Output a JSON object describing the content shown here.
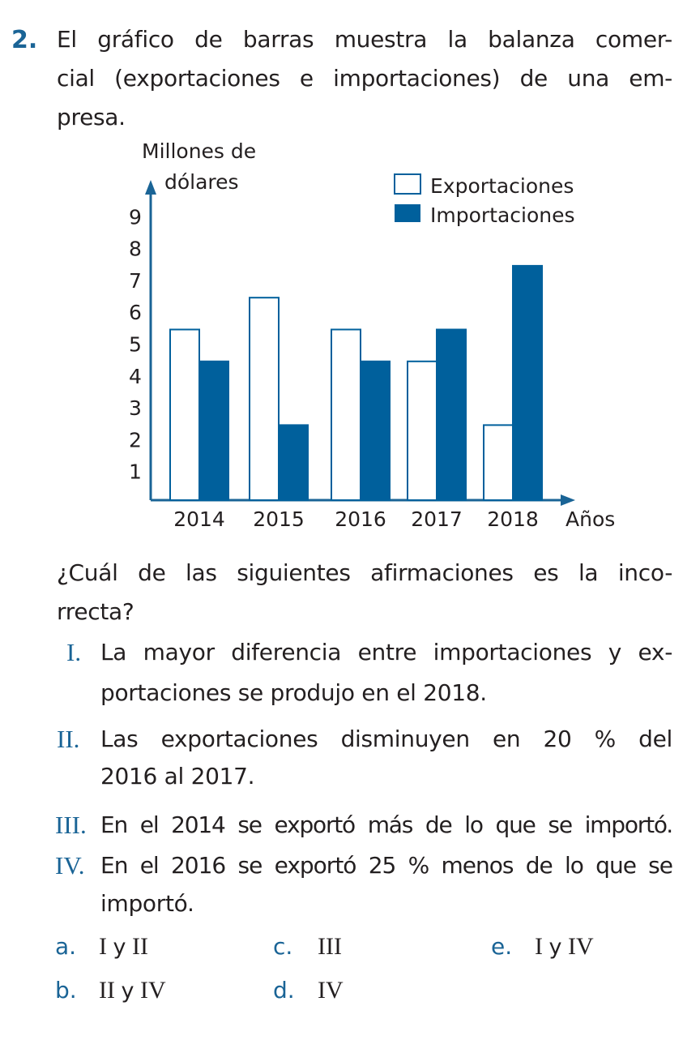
{
  "problem": {
    "number": "2.",
    "statement_lines": [
      "El gráfico de barras muestra la balanza comer-",
      "cial (exportaciones e importaciones) de una em-",
      "presa."
    ],
    "question_lines": [
      "¿Cuál de las siguientes afirmaciones es la inco-",
      "rrecta?"
    ],
    "statements": [
      {
        "numeral": "I.",
        "lines": [
          "La mayor diferencia entre importaciones y ex-",
          "portaciones se produjo en el 2018."
        ]
      },
      {
        "numeral": "II.",
        "lines": [
          "Las exportaciones disminuyen en 20 % del",
          "2016 al 2017."
        ]
      },
      {
        "numeral": "III.",
        "lines": [
          "En el 2014 se exportó más de lo que se importó."
        ]
      },
      {
        "numeral": "IV.",
        "lines": [
          "En el 2016 se exportó 25 % menos de lo que se",
          "importó."
        ]
      }
    ],
    "options": [
      {
        "letter": "a.",
        "parts": [
          "I",
          "y",
          "II"
        ]
      },
      {
        "letter": "b.",
        "parts": [
          "II",
          "y",
          "IV"
        ]
      },
      {
        "letter": "c.",
        "parts": [
          "III"
        ]
      },
      {
        "letter": "d.",
        "parts": [
          "IV"
        ]
      },
      {
        "letter": "e.",
        "parts": [
          "I",
          "y",
          "IV"
        ]
      }
    ]
  },
  "colors": {
    "accent": "#1a6496",
    "import_bar": "#00609c",
    "export_bar": "#ffffff",
    "text": "#231f20"
  },
  "chart_data": {
    "type": "bar",
    "ylabel_lines": [
      "Millones de",
      "dólares"
    ],
    "xlabel": "Años",
    "categories": [
      "2014",
      "2015",
      "2016",
      "2017",
      "2018"
    ],
    "yticks": [
      1,
      2,
      3,
      4,
      5,
      6,
      7,
      8,
      9
    ],
    "ylim": [
      0,
      9
    ],
    "grid": false,
    "legend_position": "top-right",
    "series": [
      {
        "name": "Exportaciones",
        "values": [
          5,
          6,
          5,
          4,
          2
        ],
        "fill": "#ffffff",
        "stroke": "#00609c"
      },
      {
        "name": "Importaciones",
        "values": [
          4,
          2,
          4,
          5,
          7
        ],
        "fill": "#00609c",
        "stroke": "#00609c"
      }
    ]
  }
}
